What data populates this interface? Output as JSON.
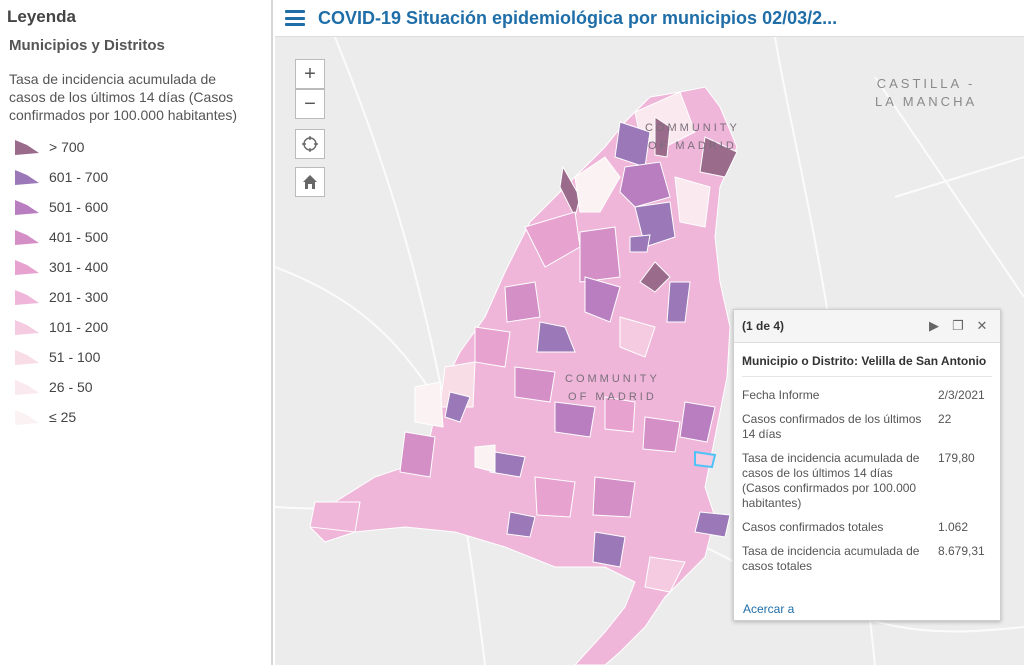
{
  "legend": {
    "title": "Leyenda",
    "layer": "Municipios y Distritos",
    "field": "Tasa de incidencia acumulada de casos de los últimos 14 días (Casos confirmados por 100.000 habitantes)",
    "classes": [
      {
        "label": "> 700",
        "color": "#9b6b8c"
      },
      {
        "label": "601 - 700",
        "color": "#9b79b8"
      },
      {
        "label": "501 - 600",
        "color": "#b97ec0"
      },
      {
        "label": "401 - 500",
        "color": "#d58fc7"
      },
      {
        "label": "301 - 400",
        "color": "#e8a2d0"
      },
      {
        "label": "201 - 300",
        "color": "#efb6d9"
      },
      {
        "label": "101 - 200",
        "color": "#f5cbe1"
      },
      {
        "label": "51 - 100",
        "color": "#f8dde7"
      },
      {
        "label": "26 - 50",
        "color": "#fae9ee"
      },
      {
        "label": "≤ 25",
        "color": "#fbf3f3"
      }
    ]
  },
  "header": {
    "title": "COVID-19 Situación epidemiológica por municipios 02/03/2..."
  },
  "map": {
    "zoom_in": "+",
    "zoom_out": "−",
    "labels": {
      "castilla": "CASTILLA -",
      "mancha": "LA MANCHA",
      "community_top": "COMMUNITY",
      "community_top2": "OF MADRID",
      "community_center": "COMMUNITY",
      "community_center2": "OF MADRID"
    }
  },
  "popup": {
    "counter": "(1 de 4)",
    "title": "Municipio o Distrito: Velilla de San Antonio",
    "rows": [
      {
        "key": "Fecha Informe",
        "value": "2/3/2021"
      },
      {
        "key": "Casos confirmados de los últimos 14 días",
        "value": "22"
      },
      {
        "key": "Tasa de incidencia acumulada de casos de los últimos 14 días (Casos confirmados por 100.000 habitantes)",
        "value": "179,80"
      },
      {
        "key": "Casos confirmados totales",
        "value": "1.062"
      },
      {
        "key": "Tasa de incidencia acumulada de casos totales",
        "value": "8.679,31"
      }
    ],
    "zoom_link": "Acercar a"
  }
}
